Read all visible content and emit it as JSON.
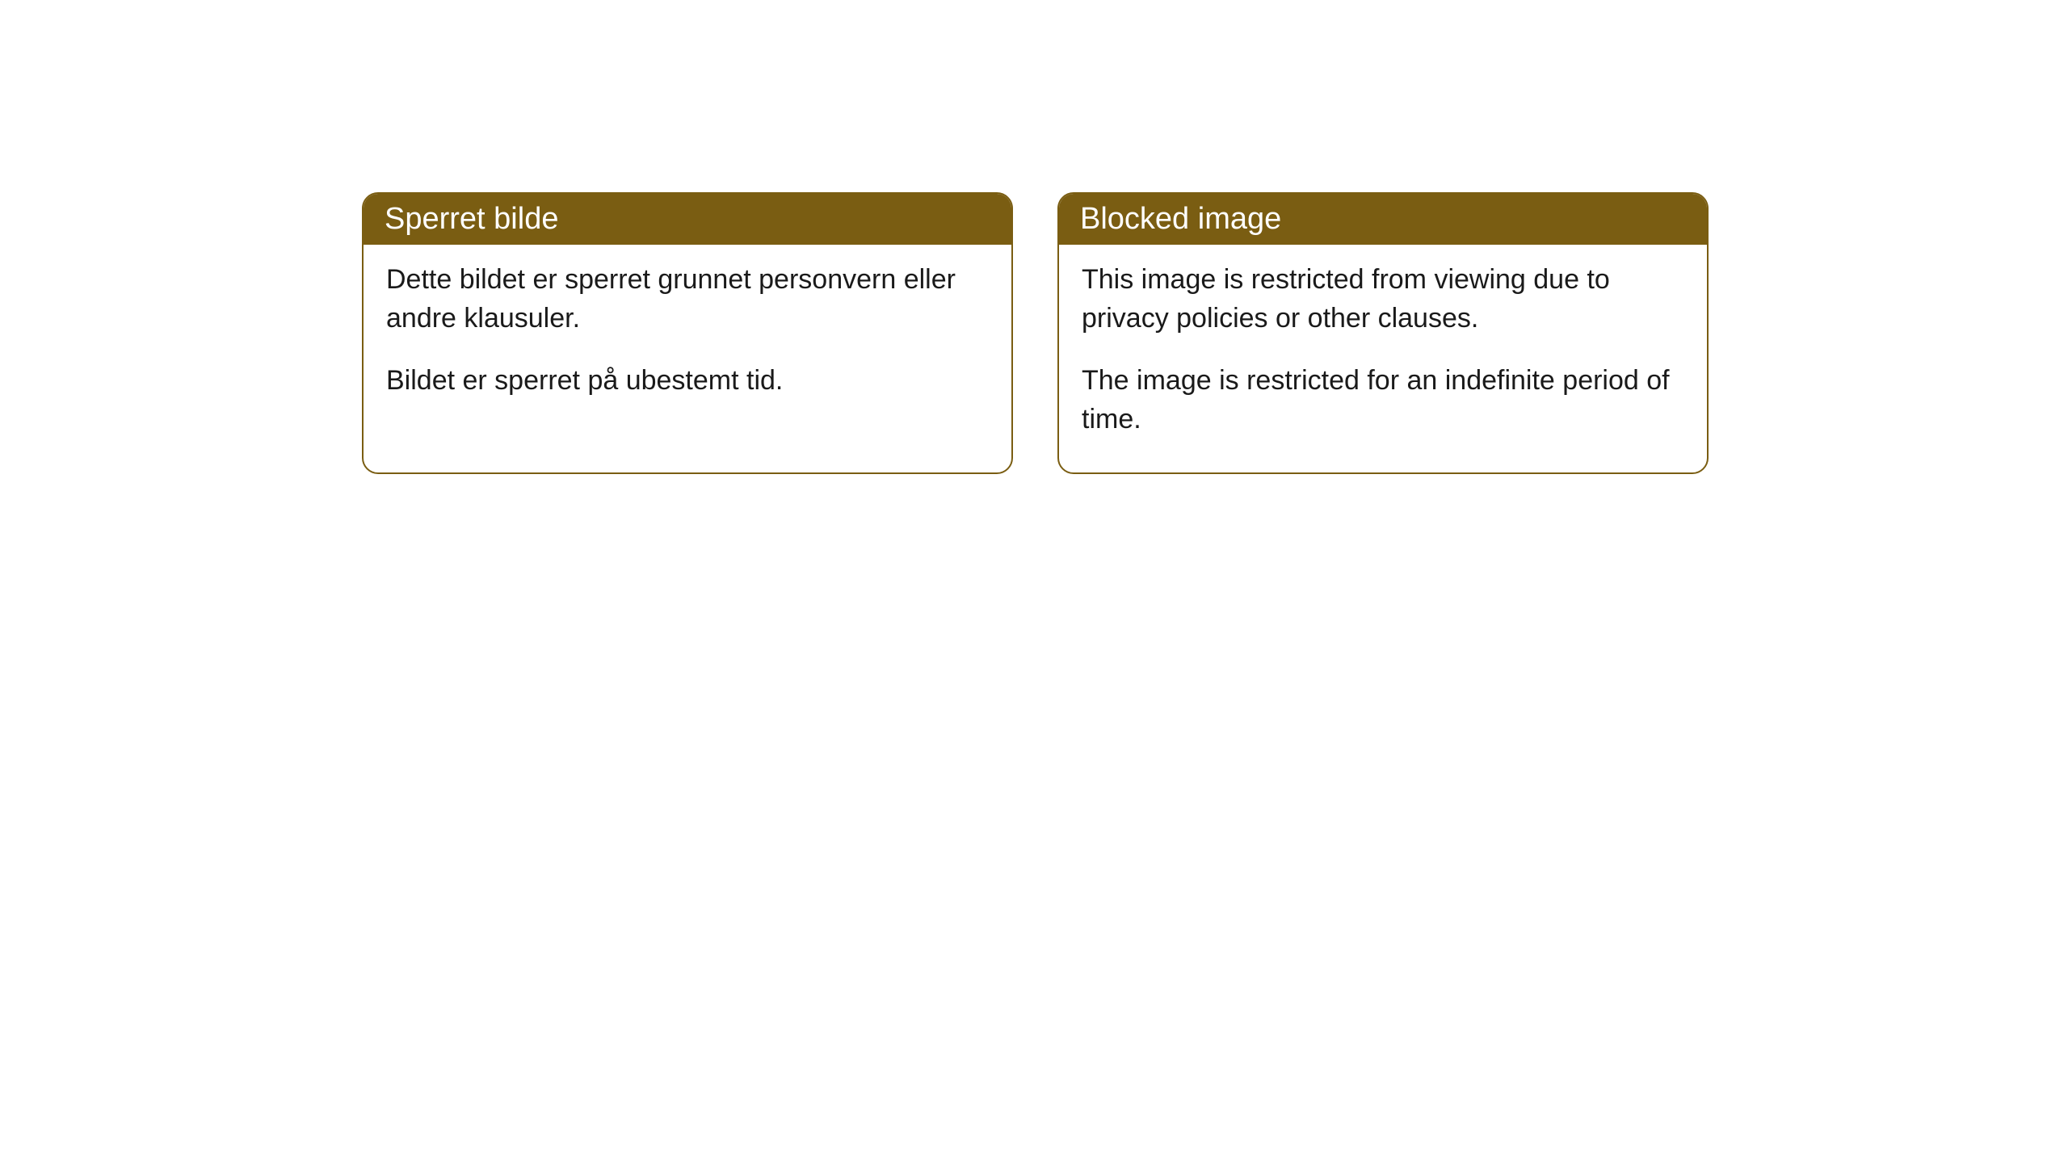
{
  "cards": [
    {
      "title": "Sperret bilde",
      "paragraph1": "Dette bildet er sperret grunnet personvern eller andre klausuler.",
      "paragraph2": "Bildet er sperret på ubestemt tid."
    },
    {
      "title": "Blocked image",
      "paragraph1": "This image is restricted from viewing due to privacy policies or other clauses.",
      "paragraph2": "The image is restricted for an indefinite period of time."
    }
  ],
  "style": {
    "header_background": "#7a5d12",
    "header_text_color": "#ffffff",
    "border_color": "#7a5d12",
    "body_background": "#ffffff",
    "body_text_color": "#1a1a1a",
    "border_radius": 20,
    "title_fontsize": 38,
    "body_fontsize": 34
  }
}
